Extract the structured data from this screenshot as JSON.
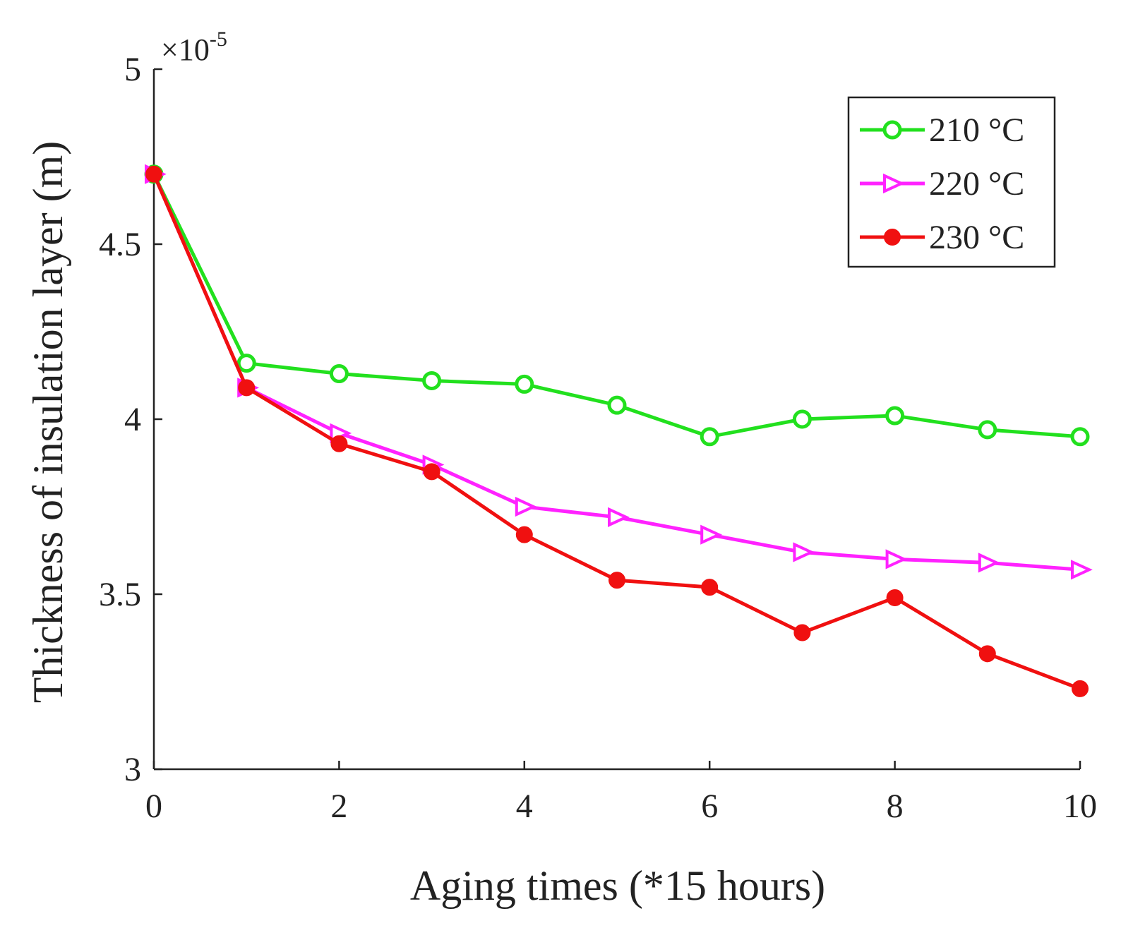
{
  "chart_data": {
    "type": "line",
    "title": "",
    "xlabel": "Aging times (*15 hours)",
    "ylabel": "Thickness of insulation layer (m)",
    "xlim": [
      0,
      10
    ],
    "ylim": [
      3,
      5
    ],
    "x_ticks": [
      0,
      2,
      4,
      6,
      8,
      10
    ],
    "y_ticks": [
      3,
      3.5,
      4,
      4.5,
      5
    ],
    "y_tick_labels": [
      "3",
      "3.5",
      "4",
      "4.5",
      "5"
    ],
    "y_scale_base": "×10",
    "y_scale_exponent": "-5",
    "grid": false,
    "legend_position": "top-right",
    "x": [
      0,
      1,
      2,
      3,
      4,
      5,
      6,
      7,
      8,
      9,
      10
    ],
    "series": [
      {
        "name": "210 °C",
        "color": "#22e01e",
        "marker": "circle-open",
        "values": [
          4.7,
          4.16,
          4.13,
          4.11,
          4.1,
          4.04,
          3.95,
          4.0,
          4.01,
          3.97,
          3.95
        ]
      },
      {
        "name": "220 °C",
        "color": "#ff22ff",
        "marker": "triangle-right-open",
        "values": [
          4.7,
          4.09,
          3.96,
          3.87,
          3.75,
          3.72,
          3.67,
          3.62,
          3.6,
          3.59,
          3.57
        ]
      },
      {
        "name": "230 °C",
        "color": "#f01010",
        "marker": "circle-filled",
        "values": [
          4.7,
          4.09,
          3.93,
          3.85,
          3.67,
          3.54,
          3.52,
          3.39,
          3.49,
          3.33,
          3.23
        ]
      }
    ]
  }
}
